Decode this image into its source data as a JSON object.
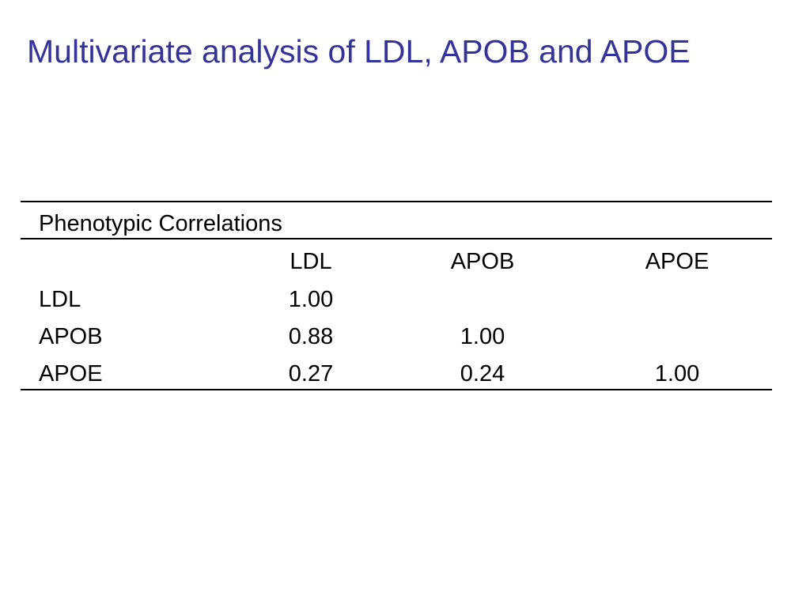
{
  "slide": {
    "title": "Multivariate analysis of LDL, APOB and APOE",
    "title_color": "#333399"
  },
  "table": {
    "section_label": "Phenotypic Correlations",
    "columns": [
      "LDL",
      "APOB",
      "APOE"
    ],
    "rows": [
      {
        "label": "LDL",
        "values": [
          "1.00",
          "",
          ""
        ]
      },
      {
        "label": "APOB",
        "values": [
          "0.88",
          "1.00",
          ""
        ]
      },
      {
        "label": "APOE",
        "values": [
          "0.27",
          "0.24",
          "1.00"
        ]
      }
    ]
  }
}
